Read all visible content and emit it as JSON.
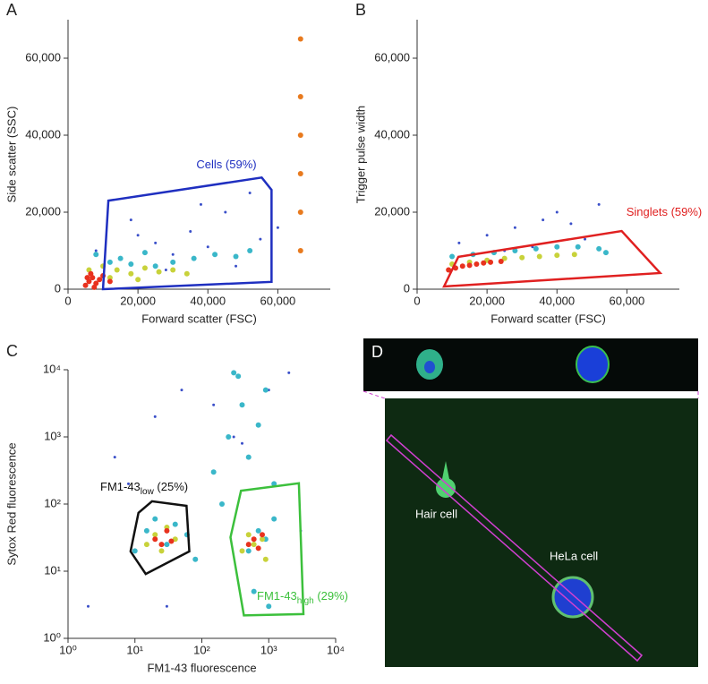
{
  "chart_data": [
    {
      "type": "scatter",
      "panel": "A",
      "xlabel": "Forward scatter (FSC)",
      "ylabel": "Side scatter (SSC)",
      "xlim": [
        0,
        75000
      ],
      "ylim": [
        0,
        70000
      ],
      "xticks": [
        0,
        {
          "value": 20000,
          "label": "20,000"
        },
        {
          "value": 40000,
          "label": "40,000"
        },
        {
          "value": 60000,
          "label": "60,000"
        }
      ],
      "yticks": [
        0,
        {
          "value": 20000,
          "label": "20,000"
        },
        {
          "value": 40000,
          "label": "40,000"
        },
        {
          "value": 60000,
          "label": "60,000"
        }
      ],
      "series": [
        {
          "color": "#3a4fc9",
          "x": [
            15000,
            25000,
            35000,
            45000,
            52000,
            30000,
            20000,
            40000,
            60000,
            8000,
            48000,
            38000,
            28000,
            55000,
            18000
          ],
          "y": [
            8000,
            12000,
            15000,
            20000,
            25000,
            9000,
            14000,
            11000,
            16000,
            10000,
            6000,
            22000,
            5000,
            13000,
            18000
          ]
        },
        {
          "color": "#3ab7c9",
          "x": [
            8000,
            12000,
            18000,
            25000,
            30000,
            36000,
            42000,
            48000,
            52000,
            22000,
            15000
          ],
          "y": [
            9000,
            7000,
            6500,
            6000,
            7000,
            8000,
            9000,
            8500,
            10000,
            9500,
            8000
          ]
        },
        {
          "color": "#c8d23a",
          "x": [
            6000,
            10000,
            14000,
            18000,
            22000,
            26000,
            30000,
            34000,
            12000,
            20000
          ],
          "y": [
            5000,
            6000,
            5000,
            4000,
            5500,
            4500,
            5000,
            4000,
            3000,
            2500
          ]
        },
        {
          "color": "#e8321e",
          "x": [
            5000,
            6000,
            7000,
            8000,
            9000,
            6500,
            7500,
            10000,
            12000,
            5500
          ],
          "y": [
            1000,
            2000,
            3000,
            1500,
            2500,
            4000,
            500,
            3500,
            2000,
            3000
          ]
        },
        {
          "color": "#e87a1e",
          "x": [
            66500,
            66500,
            66500,
            66500,
            66500,
            66500
          ],
          "y": [
            10000,
            20000,
            30000,
            40000,
            50000,
            65000
          ]
        }
      ],
      "gates": [
        {
          "label": "Cells (59%)",
          "color": "#1f2fc0",
          "x": [
            10000,
            11540,
            55400,
            58200,
            58200
          ],
          "y": [
            0,
            23000,
            29000,
            25800,
            1900
          ]
        }
      ]
    },
    {
      "type": "scatter",
      "panel": "B",
      "xlabel": "Forward scatter (FSC)",
      "ylabel": "Trigger pulse width",
      "xlim": [
        0,
        75000
      ],
      "ylim": [
        0,
        70000
      ],
      "xticks": [
        0,
        {
          "value": 20000,
          "label": "20,000"
        },
        {
          "value": 40000,
          "label": "40,000"
        },
        {
          "value": 60000,
          "label": "60,000"
        }
      ],
      "yticks": [
        0,
        {
          "value": 20000,
          "label": "20,000"
        },
        {
          "value": 40000,
          "label": "40,000"
        },
        {
          "value": 60000,
          "label": "60,000"
        }
      ],
      "series": [
        {
          "color": "#3a4fc9",
          "x": [
            12000,
            20000,
            28000,
            36000,
            44000,
            52000,
            25000,
            40000,
            33000,
            48000
          ],
          "y": [
            12000,
            14000,
            16000,
            18000,
            17000,
            22000,
            10000,
            20000,
            11000,
            13000
          ]
        },
        {
          "color": "#3ab7c9",
          "x": [
            10000,
            16000,
            22000,
            28000,
            34000,
            40000,
            46000,
            52000,
            54000
          ],
          "y": [
            8500,
            9000,
            9500,
            10000,
            10500,
            11000,
            11000,
            10500,
            9500
          ]
        },
        {
          "color": "#c8d23a",
          "x": [
            10000,
            15000,
            20000,
            25000,
            30000,
            35000,
            40000,
            45000
          ],
          "y": [
            6500,
            7000,
            7500,
            8000,
            8200,
            8500,
            8800,
            9000
          ]
        },
        {
          "color": "#e8321e",
          "x": [
            9000,
            11000,
            13000,
            15000,
            17000,
            19000,
            21000,
            24000
          ],
          "y": [
            5000,
            5500,
            6000,
            6200,
            6500,
            6800,
            7000,
            7200
          ]
        }
      ],
      "gates": [
        {
          "label": "Singlets (59%)",
          "color": "#e02020",
          "x": [
            7700,
            11800,
            58500,
            69500
          ],
          "y": [
            700,
            8400,
            15100,
            4200
          ]
        }
      ]
    },
    {
      "type": "scatter",
      "panel": "C",
      "xlabel": "FM1-43 fluorescence",
      "ylabel": "Sytox Red fluorescence",
      "log": true,
      "xlim": [
        1,
        10000
      ],
      "ylim": [
        1,
        10000
      ],
      "xticks": [
        {
          "value": 1,
          "label": "10⁰"
        },
        {
          "value": 10,
          "label": "10¹"
        },
        {
          "value": 100,
          "label": "10²"
        },
        {
          "value": 1000,
          "label": "10³"
        },
        {
          "value": 10000,
          "label": "10⁴"
        }
      ],
      "yticks": [
        {
          "value": 1,
          "label": "10⁰"
        },
        {
          "value": 10,
          "label": "10¹"
        },
        {
          "value": 100,
          "label": "10²"
        },
        {
          "value": 1000,
          "label": "10³"
        },
        {
          "value": 10000,
          "label": "10⁴"
        }
      ],
      "series": [
        {
          "color": "#3a4fc9",
          "x": [
            2,
            5,
            20,
            50,
            150,
            400,
            1000,
            3000,
            30,
            300,
            8,
            2000
          ],
          "y": [
            3,
            500,
            2000,
            5000,
            3000,
            800,
            5000,
            40,
            3,
            1000,
            200,
            9000
          ]
        },
        {
          "color": "#3ab7c9",
          "x": [
            300,
            400,
            500,
            700,
            900,
            1200,
            200,
            150,
            250,
            350,
            1000,
            600
          ],
          "y": [
            9000,
            3000,
            500,
            1500,
            5000,
            200,
            100,
            300,
            1000,
            8000,
            3,
            5
          ]
        },
        {
          "color": "#3ab7c9",
          "x": [
            10,
            15,
            20,
            30,
            40,
            60,
            80,
            500,
            700,
            900,
            1200
          ],
          "y": [
            20,
            40,
            60,
            25,
            50,
            35,
            15,
            20,
            40,
            30,
            60
          ]
        },
        {
          "color": "#c8d23a",
          "x": [
            15,
            20,
            25,
            30,
            40,
            400,
            500,
            600,
            800,
            900
          ],
          "y": [
            25,
            35,
            20,
            45,
            30,
            20,
            35,
            25,
            30,
            15
          ]
        },
        {
          "color": "#e8321e",
          "x": [
            20,
            25,
            30,
            35,
            500,
            600,
            700,
            800
          ],
          "y": [
            30,
            25,
            40,
            28,
            25,
            30,
            22,
            35
          ]
        }
      ],
      "gates": [
        {
          "label": "FM1-43",
          "sub": "low",
          "suffix": " (25%)",
          "color": "#111111",
          "x": [
            8.6,
            11.3,
            18,
            59,
            65,
            14.5
          ],
          "y": [
            19.7,
            74,
            110,
            94,
            19.7,
            9.1
          ]
        },
        {
          "label": "FM1-43",
          "sub": "high",
          "suffix": " (29%)",
          "color": "#3cc03c",
          "x": [
            385,
            2820,
            3300,
            425,
            268
          ],
          "y": [
            158,
            204,
            2.3,
            2.2,
            32
          ]
        }
      ]
    }
  ],
  "panel_d": {
    "panel": "D",
    "labels": [
      "Hair cell",
      "HeLa cell"
    ]
  }
}
